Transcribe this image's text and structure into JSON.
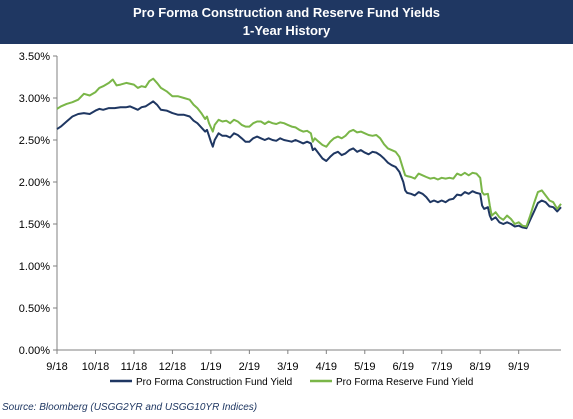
{
  "chart_data": {
    "type": "line",
    "title": "Pro Forma Construction and Reserve Fund Yields",
    "subtitle": "1-Year History",
    "source": "Source: Bloomberg (USGG2YR and USGG10YR Indices)",
    "xlabel": "",
    "ylabel": "",
    "x_unit": "month index (0 = 9/18)",
    "x_range": [
      0,
      13.1
    ],
    "ylim": [
      0,
      3.5
    ],
    "y_ticks": [
      "0.00%",
      "0.50%",
      "1.00%",
      "1.50%",
      "2.00%",
      "2.50%",
      "3.00%",
      "3.50%"
    ],
    "x_ticks": [
      {
        "x": 0,
        "label": "9/18"
      },
      {
        "x": 1,
        "label": "10/18"
      },
      {
        "x": 2,
        "label": "11/18"
      },
      {
        "x": 3,
        "label": "12/18"
      },
      {
        "x": 4,
        "label": "1/19"
      },
      {
        "x": 5,
        "label": "2/19"
      },
      {
        "x": 6,
        "label": "3/19"
      },
      {
        "x": 7,
        "label": "4/19"
      },
      {
        "x": 8,
        "label": "5/19"
      },
      {
        "x": 9,
        "label": "6/19"
      },
      {
        "x": 10,
        "label": "7/19"
      },
      {
        "x": 11,
        "label": "8/19"
      },
      {
        "x": 12,
        "label": "9/19"
      }
    ],
    "grid": false,
    "legend_position": "bottom",
    "series": [
      {
        "name": "Pro Forma Construction Fund Yield",
        "color": "#1f3762",
        "points": [
          [
            0.0,
            2.63
          ],
          [
            0.1,
            2.66
          ],
          [
            0.25,
            2.72
          ],
          [
            0.4,
            2.78
          ],
          [
            0.55,
            2.81
          ],
          [
            0.7,
            2.82
          ],
          [
            0.85,
            2.81
          ],
          [
            1.0,
            2.85
          ],
          [
            1.1,
            2.87
          ],
          [
            1.2,
            2.86
          ],
          [
            1.35,
            2.88
          ],
          [
            1.5,
            2.88
          ],
          [
            1.65,
            2.89
          ],
          [
            1.8,
            2.89
          ],
          [
            1.9,
            2.9
          ],
          [
            2.0,
            2.88
          ],
          [
            2.1,
            2.86
          ],
          [
            2.2,
            2.89
          ],
          [
            2.3,
            2.9
          ],
          [
            2.4,
            2.93
          ],
          [
            2.5,
            2.96
          ],
          [
            2.6,
            2.92
          ],
          [
            2.7,
            2.86
          ],
          [
            2.85,
            2.85
          ],
          [
            3.0,
            2.82
          ],
          [
            3.15,
            2.8
          ],
          [
            3.3,
            2.8
          ],
          [
            3.45,
            2.78
          ],
          [
            3.55,
            2.73
          ],
          [
            3.65,
            2.7
          ],
          [
            3.75,
            2.65
          ],
          [
            3.85,
            2.6
          ],
          [
            3.9,
            2.62
          ],
          [
            3.95,
            2.55
          ],
          [
            4.0,
            2.48
          ],
          [
            4.05,
            2.42
          ],
          [
            4.1,
            2.5
          ],
          [
            4.2,
            2.58
          ],
          [
            4.3,
            2.55
          ],
          [
            4.4,
            2.55
          ],
          [
            4.5,
            2.53
          ],
          [
            4.6,
            2.58
          ],
          [
            4.7,
            2.56
          ],
          [
            4.8,
            2.52
          ],
          [
            4.9,
            2.48
          ],
          [
            5.0,
            2.48
          ],
          [
            5.1,
            2.52
          ],
          [
            5.2,
            2.54
          ],
          [
            5.3,
            2.52
          ],
          [
            5.4,
            2.5
          ],
          [
            5.5,
            2.52
          ],
          [
            5.6,
            2.5
          ],
          [
            5.7,
            2.49
          ],
          [
            5.8,
            2.52
          ],
          [
            5.9,
            2.5
          ],
          [
            6.0,
            2.49
          ],
          [
            6.1,
            2.48
          ],
          [
            6.2,
            2.5
          ],
          [
            6.3,
            2.48
          ],
          [
            6.4,
            2.46
          ],
          [
            6.5,
            2.48
          ],
          [
            6.6,
            2.46
          ],
          [
            6.65,
            2.38
          ],
          [
            6.7,
            2.4
          ],
          [
            6.8,
            2.34
          ],
          [
            6.9,
            2.28
          ],
          [
            7.0,
            2.25
          ],
          [
            7.1,
            2.3
          ],
          [
            7.2,
            2.34
          ],
          [
            7.3,
            2.36
          ],
          [
            7.4,
            2.32
          ],
          [
            7.5,
            2.34
          ],
          [
            7.6,
            2.38
          ],
          [
            7.7,
            2.4
          ],
          [
            7.8,
            2.36
          ],
          [
            7.9,
            2.38
          ],
          [
            8.0,
            2.35
          ],
          [
            8.1,
            2.33
          ],
          [
            8.2,
            2.36
          ],
          [
            8.3,
            2.35
          ],
          [
            8.4,
            2.32
          ],
          [
            8.5,
            2.28
          ],
          [
            8.6,
            2.23
          ],
          [
            8.7,
            2.2
          ],
          [
            8.8,
            2.18
          ],
          [
            8.9,
            2.12
          ],
          [
            9.0,
            2.0
          ],
          [
            9.05,
            1.9
          ],
          [
            9.1,
            1.87
          ],
          [
            9.2,
            1.86
          ],
          [
            9.3,
            1.84
          ],
          [
            9.4,
            1.88
          ],
          [
            9.5,
            1.86
          ],
          [
            9.6,
            1.82
          ],
          [
            9.7,
            1.76
          ],
          [
            9.8,
            1.78
          ],
          [
            9.9,
            1.76
          ],
          [
            10.0,
            1.78
          ],
          [
            10.1,
            1.76
          ],
          [
            10.2,
            1.79
          ],
          [
            10.3,
            1.8
          ],
          [
            10.4,
            1.85
          ],
          [
            10.5,
            1.84
          ],
          [
            10.6,
            1.88
          ],
          [
            10.7,
            1.86
          ],
          [
            10.8,
            1.89
          ],
          [
            10.9,
            1.87
          ],
          [
            11.0,
            1.86
          ],
          [
            11.05,
            1.72
          ],
          [
            11.1,
            1.68
          ],
          [
            11.2,
            1.7
          ],
          [
            11.25,
            1.6
          ],
          [
            11.3,
            1.55
          ],
          [
            11.4,
            1.58
          ],
          [
            11.5,
            1.52
          ],
          [
            11.6,
            1.5
          ],
          [
            11.7,
            1.52
          ],
          [
            11.8,
            1.5
          ],
          [
            11.9,
            1.47
          ],
          [
            12.0,
            1.48
          ],
          [
            12.1,
            1.46
          ],
          [
            12.2,
            1.45
          ],
          [
            12.3,
            1.55
          ],
          [
            12.4,
            1.65
          ],
          [
            12.5,
            1.75
          ],
          [
            12.6,
            1.78
          ],
          [
            12.7,
            1.76
          ],
          [
            12.8,
            1.71
          ],
          [
            12.9,
            1.7
          ],
          [
            13.0,
            1.65
          ],
          [
            13.1,
            1.7
          ]
        ]
      },
      {
        "name": "Pro Forma Reserve Fund Yield",
        "color": "#7ab648",
        "points": [
          [
            0.0,
            2.87
          ],
          [
            0.1,
            2.9
          ],
          [
            0.25,
            2.93
          ],
          [
            0.4,
            2.95
          ],
          [
            0.55,
            2.98
          ],
          [
            0.7,
            3.05
          ],
          [
            0.85,
            3.03
          ],
          [
            1.0,
            3.07
          ],
          [
            1.1,
            3.12
          ],
          [
            1.2,
            3.14
          ],
          [
            1.35,
            3.18
          ],
          [
            1.45,
            3.22
          ],
          [
            1.55,
            3.15
          ],
          [
            1.65,
            3.16
          ],
          [
            1.8,
            3.18
          ],
          [
            2.0,
            3.16
          ],
          [
            2.1,
            3.12
          ],
          [
            2.2,
            3.14
          ],
          [
            2.3,
            3.13
          ],
          [
            2.4,
            3.2
          ],
          [
            2.5,
            3.23
          ],
          [
            2.6,
            3.18
          ],
          [
            2.7,
            3.12
          ],
          [
            2.85,
            3.08
          ],
          [
            3.0,
            3.02
          ],
          [
            3.15,
            3.02
          ],
          [
            3.3,
            3.0
          ],
          [
            3.45,
            2.98
          ],
          [
            3.55,
            2.92
          ],
          [
            3.65,
            2.88
          ],
          [
            3.75,
            2.82
          ],
          [
            3.85,
            2.75
          ],
          [
            3.9,
            2.78
          ],
          [
            3.95,
            2.7
          ],
          [
            4.0,
            2.65
          ],
          [
            4.05,
            2.6
          ],
          [
            4.1,
            2.68
          ],
          [
            4.2,
            2.74
          ],
          [
            4.3,
            2.72
          ],
          [
            4.4,
            2.73
          ],
          [
            4.5,
            2.7
          ],
          [
            4.6,
            2.74
          ],
          [
            4.7,
            2.72
          ],
          [
            4.8,
            2.68
          ],
          [
            4.9,
            2.66
          ],
          [
            5.0,
            2.66
          ],
          [
            5.1,
            2.7
          ],
          [
            5.2,
            2.72
          ],
          [
            5.3,
            2.72
          ],
          [
            5.4,
            2.69
          ],
          [
            5.5,
            2.72
          ],
          [
            5.6,
            2.7
          ],
          [
            5.7,
            2.69
          ],
          [
            5.8,
            2.71
          ],
          [
            5.9,
            2.7
          ],
          [
            6.0,
            2.68
          ],
          [
            6.1,
            2.66
          ],
          [
            6.2,
            2.65
          ],
          [
            6.3,
            2.62
          ],
          [
            6.4,
            2.6
          ],
          [
            6.5,
            2.61
          ],
          [
            6.6,
            2.58
          ],
          [
            6.65,
            2.48
          ],
          [
            6.7,
            2.52
          ],
          [
            6.8,
            2.48
          ],
          [
            6.9,
            2.44
          ],
          [
            7.0,
            2.42
          ],
          [
            7.1,
            2.48
          ],
          [
            7.2,
            2.52
          ],
          [
            7.3,
            2.54
          ],
          [
            7.4,
            2.52
          ],
          [
            7.5,
            2.55
          ],
          [
            7.6,
            2.6
          ],
          [
            7.7,
            2.62
          ],
          [
            7.8,
            2.59
          ],
          [
            7.9,
            2.6
          ],
          [
            8.0,
            2.58
          ],
          [
            8.1,
            2.56
          ],
          [
            8.2,
            2.55
          ],
          [
            8.3,
            2.56
          ],
          [
            8.4,
            2.52
          ],
          [
            8.5,
            2.45
          ],
          [
            8.6,
            2.4
          ],
          [
            8.7,
            2.38
          ],
          [
            8.8,
            2.36
          ],
          [
            8.9,
            2.3
          ],
          [
            9.0,
            2.15
          ],
          [
            9.05,
            2.08
          ],
          [
            9.1,
            2.07
          ],
          [
            9.2,
            2.06
          ],
          [
            9.3,
            2.04
          ],
          [
            9.4,
            2.1
          ],
          [
            9.5,
            2.08
          ],
          [
            9.6,
            2.06
          ],
          [
            9.7,
            2.04
          ],
          [
            9.8,
            2.05
          ],
          [
            9.9,
            2.03
          ],
          [
            10.0,
            2.05
          ],
          [
            10.1,
            2.04
          ],
          [
            10.2,
            2.05
          ],
          [
            10.3,
            2.04
          ],
          [
            10.4,
            2.1
          ],
          [
            10.5,
            2.08
          ],
          [
            10.6,
            2.11
          ],
          [
            10.7,
            2.08
          ],
          [
            10.8,
            2.11
          ],
          [
            10.9,
            2.1
          ],
          [
            11.0,
            2.05
          ],
          [
            11.05,
            1.88
          ],
          [
            11.1,
            1.85
          ],
          [
            11.2,
            1.86
          ],
          [
            11.25,
            1.72
          ],
          [
            11.3,
            1.6
          ],
          [
            11.4,
            1.64
          ],
          [
            11.5,
            1.58
          ],
          [
            11.6,
            1.55
          ],
          [
            11.7,
            1.6
          ],
          [
            11.8,
            1.56
          ],
          [
            11.9,
            1.5
          ],
          [
            12.0,
            1.52
          ],
          [
            12.1,
            1.48
          ],
          [
            12.2,
            1.47
          ],
          [
            12.3,
            1.6
          ],
          [
            12.4,
            1.75
          ],
          [
            12.5,
            1.88
          ],
          [
            12.6,
            1.9
          ],
          [
            12.7,
            1.84
          ],
          [
            12.8,
            1.78
          ],
          [
            12.9,
            1.76
          ],
          [
            13.0,
            1.68
          ],
          [
            13.1,
            1.74
          ]
        ]
      }
    ]
  }
}
